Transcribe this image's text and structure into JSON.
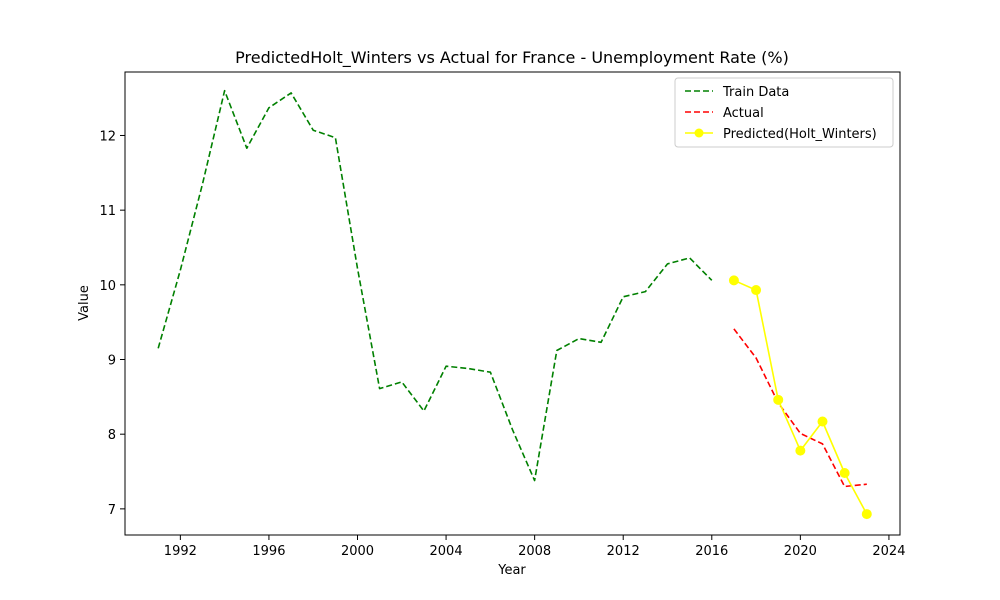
{
  "chart_data": {
    "type": "line",
    "title": "PredictedHolt_Winters vs Actual for France - Unemployment Rate (%)",
    "xlabel": "Year",
    "ylabel": "Value",
    "xlim": [
      1989.5,
      2024.5
    ],
    "ylim": [
      6.65,
      12.85
    ],
    "x_ticks": [
      1992,
      1996,
      2000,
      2004,
      2008,
      2012,
      2016,
      2020,
      2024
    ],
    "y_ticks": [
      7,
      8,
      9,
      10,
      11,
      12
    ],
    "grid": false,
    "legend_position": "top-right",
    "series": [
      {
        "name": "Train Data",
        "color": "#008000",
        "style": "dashed",
        "marker": "none",
        "x": [
          1991,
          1992,
          1993,
          1994,
          1995,
          1996,
          1997,
          1998,
          1999,
          2000,
          2001,
          2002,
          2003,
          2004,
          2005,
          2006,
          2007,
          2008,
          2009,
          2010,
          2011,
          2012,
          2013,
          2014,
          2015,
          2016
        ],
        "y": [
          9.15,
          10.2,
          11.35,
          12.6,
          11.83,
          12.37,
          12.57,
          12.07,
          11.97,
          10.22,
          8.61,
          8.7,
          8.31,
          8.91,
          8.88,
          8.83,
          8.06,
          7.38,
          9.12,
          9.28,
          9.23,
          9.84,
          9.91,
          10.28,
          10.36,
          10.06
        ]
      },
      {
        "name": "Actual",
        "color": "#ff0000",
        "style": "dashed",
        "marker": "none",
        "x": [
          2017,
          2018,
          2019,
          2020,
          2021,
          2022,
          2023
        ],
        "y": [
          9.41,
          9.02,
          8.42,
          8.01,
          7.87,
          7.3,
          7.33
        ]
      },
      {
        "name": "Predicted(Holt_Winters)",
        "color": "#ffff00",
        "style": "solid",
        "marker": "circle",
        "x": [
          2017,
          2018,
          2019,
          2020,
          2021,
          2022,
          2023
        ],
        "y": [
          10.06,
          9.93,
          8.46,
          7.78,
          8.17,
          7.48,
          6.93
        ]
      }
    ]
  }
}
